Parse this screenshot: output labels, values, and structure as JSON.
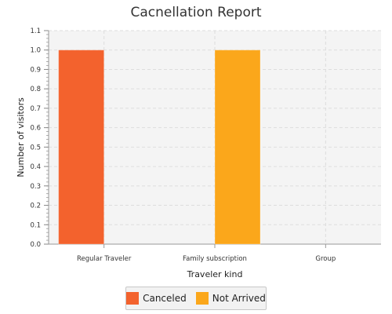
{
  "chart_data": {
    "type": "bar",
    "title": "Cacnellation Report",
    "xlabel": "Traveler kind",
    "ylabel": "Number of visitors",
    "categories": [
      "Regular Traveler",
      "Family subscription",
      "Group"
    ],
    "series": [
      {
        "name": "Canceled",
        "values": [
          1.0,
          0.0,
          0.0
        ],
        "color": "#f3622d"
      },
      {
        "name": "Not Arrived",
        "values": [
          0.0,
          1.0,
          0.0
        ],
        "color": "#fba71b"
      }
    ],
    "ylim": [
      0.0,
      1.1
    ],
    "yticks": [
      "0.0",
      "0.1",
      "0.2",
      "0.3",
      "0.4",
      "0.5",
      "0.6",
      "0.7",
      "0.8",
      "0.9",
      "1.0",
      "1.1"
    ],
    "grid": true,
    "legend_position": "bottom"
  }
}
